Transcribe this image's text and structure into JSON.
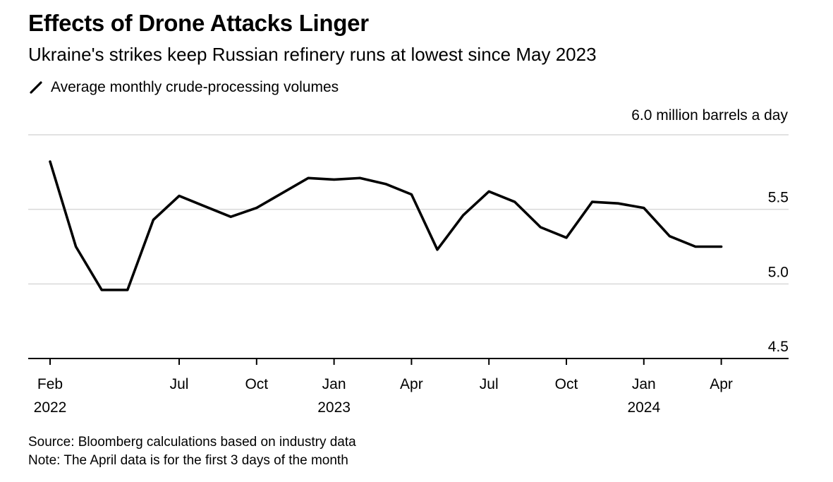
{
  "title": "Effects of Drone Attacks Linger",
  "subtitle": "Ukraine's strikes keep Russian refinery runs at lowest since May 2023",
  "legend": {
    "label": "Average monthly crude-processing volumes",
    "color": "#000000"
  },
  "unit_label": "6.0 million barrels a day",
  "footnotes": {
    "source": "Source: Bloomberg calculations based on industry data",
    "note": "Note: The April data is for the first 3 days of the month"
  },
  "colors": {
    "line": "#000000",
    "grid": "#d9d9d9",
    "axis": "#000000"
  },
  "chart_data": {
    "type": "line",
    "x": [
      "2022-02",
      "2022-03",
      "2022-04",
      "2022-05",
      "2022-06",
      "2022-07",
      "2022-08",
      "2022-09",
      "2022-10",
      "2022-11",
      "2022-12",
      "2023-01",
      "2023-02",
      "2023-03",
      "2023-04",
      "2023-05",
      "2023-06",
      "2023-07",
      "2023-08",
      "2023-09",
      "2023-10",
      "2023-11",
      "2023-12",
      "2024-01",
      "2024-02",
      "2024-03",
      "2024-04"
    ],
    "series": [
      {
        "values": [
          5.82,
          5.25,
          4.96,
          4.96,
          5.43,
          5.59,
          5.52,
          5.45,
          5.51,
          5.61,
          5.71,
          5.7,
          5.71,
          5.67,
          5.6,
          5.23,
          5.46,
          5.62,
          5.55,
          5.38,
          5.31,
          5.55,
          5.54,
          5.51,
          5.32,
          5.25,
          5.25
        ]
      }
    ],
    "ylim": [
      4.5,
      6.0
    ],
    "yticks": [
      {
        "value": 4.5,
        "label": "4.5"
      },
      {
        "value": 5.0,
        "label": "5.0"
      },
      {
        "value": 5.5,
        "label": "5.5"
      }
    ],
    "xticks": [
      {
        "x": "2022-02",
        "label": "Feb",
        "year": "2022"
      },
      {
        "x": "2022-07",
        "label": "Jul",
        "year": ""
      },
      {
        "x": "2022-10",
        "label": "Oct",
        "year": ""
      },
      {
        "x": "2023-01",
        "label": "Jan",
        "year": "2023"
      },
      {
        "x": "2023-04",
        "label": "Apr",
        "year": ""
      },
      {
        "x": "2023-07",
        "label": "Jul",
        "year": ""
      },
      {
        "x": "2023-10",
        "label": "Oct",
        "year": ""
      },
      {
        "x": "2024-01",
        "label": "Jan",
        "year": "2024"
      },
      {
        "x": "2024-04",
        "label": "Apr",
        "year": ""
      }
    ],
    "grid": true,
    "legend_position": "top-left"
  }
}
